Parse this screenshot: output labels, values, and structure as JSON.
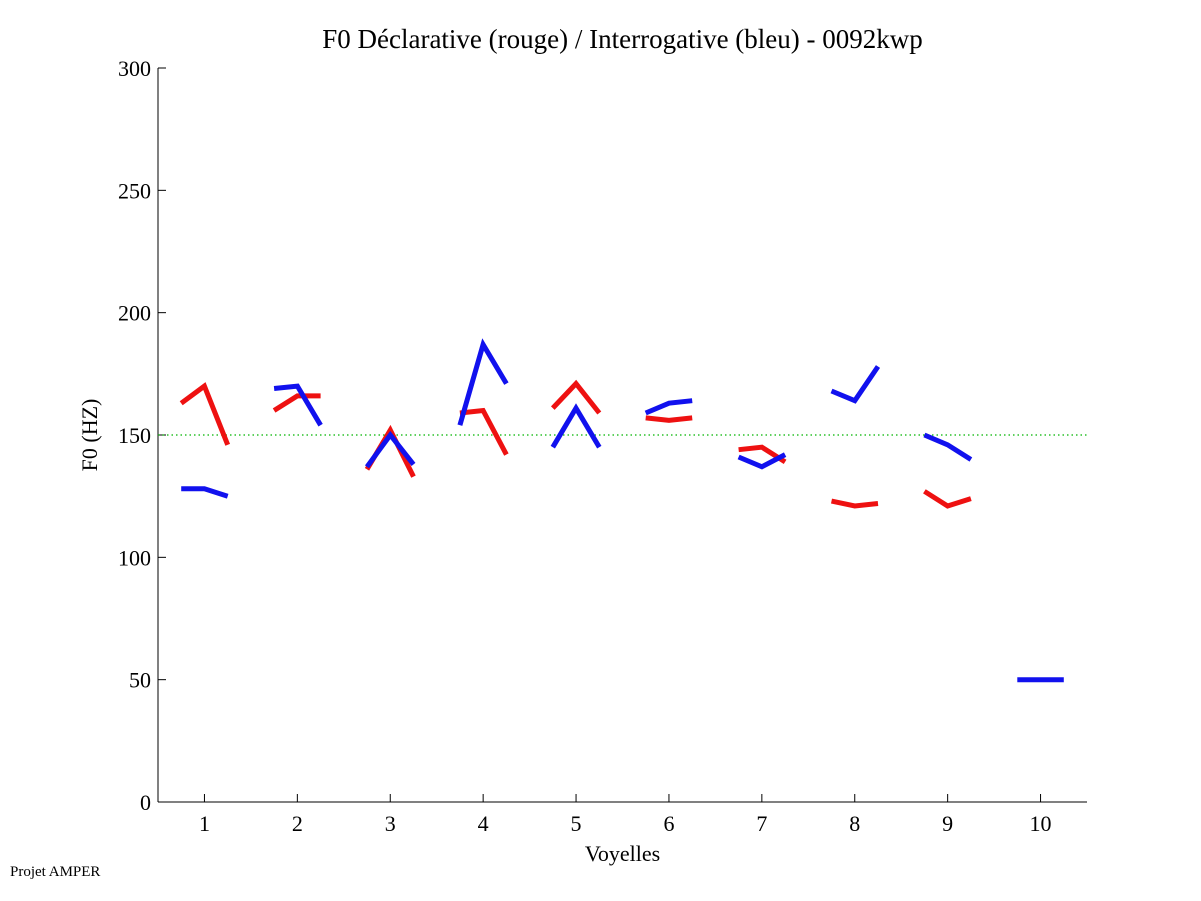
{
  "credit": "Projet AMPER",
  "chart_data": {
    "type": "line",
    "title": "F0 Déclarative (rouge) / Interrogative (bleu) - 0092kwp",
    "xlabel": "Voyelles",
    "ylabel": "F0 (HZ)",
    "xlim": [
      0.5,
      10.5
    ],
    "ylim": [
      0,
      300
    ],
    "xticks": [
      1,
      2,
      3,
      4,
      5,
      6,
      7,
      8,
      9,
      10
    ],
    "xtick_labels": [
      "1",
      "2",
      "3",
      "4",
      "5",
      "6",
      "7",
      "8",
      "9",
      "10"
    ],
    "yticks": [
      0,
      50,
      100,
      150,
      200,
      250,
      300
    ],
    "ytick_labels": [
      "0",
      "50",
      "100",
      "150",
      "200",
      "250",
      "300"
    ],
    "reference_line": {
      "y": 150,
      "style": "dotted",
      "color": "#00b400"
    },
    "grid": false,
    "series": [
      {
        "name": "Déclarative",
        "color": "#ee1111",
        "segments": [
          {
            "vowel": 1,
            "x": [
              0.75,
              1.0,
              1.25
            ],
            "y": [
              163,
              170,
              146
            ]
          },
          {
            "vowel": 2,
            "x": [
              1.75,
              2.0,
              2.25
            ],
            "y": [
              160,
              166,
              166
            ]
          },
          {
            "vowel": 3,
            "x": [
              2.75,
              3.0,
              3.25
            ],
            "y": [
              136,
              152,
              133
            ]
          },
          {
            "vowel": 4,
            "x": [
              3.75,
              4.0,
              4.25
            ],
            "y": [
              159,
              160,
              142
            ]
          },
          {
            "vowel": 5,
            "x": [
              4.75,
              5.0,
              5.25
            ],
            "y": [
              161,
              171,
              159
            ]
          },
          {
            "vowel": 6,
            "x": [
              5.75,
              6.0,
              6.25
            ],
            "y": [
              157,
              156,
              157
            ]
          },
          {
            "vowel": 7,
            "x": [
              6.75,
              7.0,
              7.25
            ],
            "y": [
              144,
              145,
              139
            ]
          },
          {
            "vowel": 8,
            "x": [
              7.75,
              8.0,
              8.25
            ],
            "y": [
              123,
              121,
              122
            ]
          },
          {
            "vowel": 9,
            "x": [
              8.75,
              9.0,
              9.25
            ],
            "y": [
              127,
              121,
              124
            ]
          }
        ]
      },
      {
        "name": "Interrogative",
        "color": "#1111ee",
        "segments": [
          {
            "vowel": 1,
            "x": [
              0.75,
              1.0,
              1.25
            ],
            "y": [
              128,
              128,
              125
            ]
          },
          {
            "vowel": 2,
            "x": [
              1.75,
              2.0,
              2.25
            ],
            "y": [
              169,
              170,
              154
            ]
          },
          {
            "vowel": 3,
            "x": [
              2.75,
              3.0,
              3.25
            ],
            "y": [
              137,
              150,
              138
            ]
          },
          {
            "vowel": 4,
            "x": [
              3.75,
              4.0,
              4.25
            ],
            "y": [
              154,
              187,
              171
            ]
          },
          {
            "vowel": 5,
            "x": [
              4.75,
              5.0,
              5.25
            ],
            "y": [
              145,
              161,
              145
            ]
          },
          {
            "vowel": 6,
            "x": [
              5.75,
              6.0,
              6.25
            ],
            "y": [
              159,
              163,
              164
            ]
          },
          {
            "vowel": 7,
            "x": [
              6.75,
              7.0,
              7.25
            ],
            "y": [
              141,
              137,
              142
            ]
          },
          {
            "vowel": 8,
            "x": [
              7.75,
              8.0,
              8.25
            ],
            "y": [
              168,
              164,
              178
            ]
          },
          {
            "vowel": 9,
            "x": [
              8.75,
              9.0,
              9.25
            ],
            "y": [
              150,
              146,
              140
            ]
          },
          {
            "vowel": 10,
            "x": [
              9.75,
              10.0,
              10.25
            ],
            "y": [
              50,
              50,
              50
            ]
          }
        ]
      }
    ]
  }
}
